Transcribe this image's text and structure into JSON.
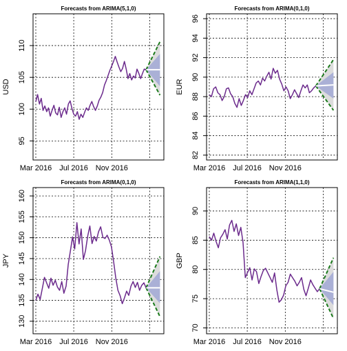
{
  "colors": {
    "series": "#6b2a8c",
    "forecast_mean": "#ffffff",
    "band80": "#aab0d6",
    "band95": "#dcdcdc",
    "forecast_bounds": "#1a7a1a",
    "grid": "#000000"
  },
  "chart_data": [
    {
      "type": "line",
      "title": "Forecasts from ARIMA(5,1,0)",
      "ylabel": "USD",
      "xtick_labels": [
        "Mar 2016",
        "Jul 2016",
        "Nov 2016"
      ],
      "xtick_pos": [
        0.0,
        0.333,
        0.667
      ],
      "x_range": [
        0.0,
        1.1
      ],
      "ylim": [
        92,
        115
      ],
      "yticks": [
        95,
        100,
        105,
        110
      ],
      "grid": true,
      "series": [
        {
          "values": [
            101.2,
            102.3,
            100.8,
            101.7,
            99.8,
            100.5,
            99.6,
            100.2,
            98.9,
            99.8,
            100.6,
            99.4,
            99.1,
            100.3,
            98.7,
            99.6,
            100.2,
            99.2,
            100.8,
            101.3,
            100.1,
            99.2,
            98.9,
            99.6,
            98.4,
            99.2,
            98.7,
            99.5,
            100.2,
            99.8,
            100.6,
            101.2,
            100.4,
            99.8,
            100.5,
            101.4,
            101.9,
            102.6,
            103.8,
            104.5,
            105.3,
            106.1,
            106.8,
            107.5,
            108.3,
            107.4,
            106.6,
            105.9,
            106.4,
            107.5,
            106.3,
            104.8,
            105.6,
            104.6,
            105.2,
            104.9,
            106.3,
            105.6,
            104.8,
            105.6,
            106.3,
            106.2
          ]
        }
      ],
      "forecast": {
        "x_start": 0.968,
        "x_end": 1.09,
        "mean_start": 106.2,
        "mean_end": 106.2,
        "lo80_end": 103.6,
        "hi80_end": 108.7,
        "lo95_end": 102.2,
        "hi95_end": 110.6
      }
    },
    {
      "type": "line",
      "title": "Forecasts from ARIMA(0,1,0)",
      "ylabel": "EUR",
      "xtick_labels": [
        "Mar 2016",
        "Jul 2016",
        "Nov 2016"
      ],
      "xtick_pos": [
        0.0,
        0.333,
        0.667
      ],
      "x_range": [
        0.0,
        1.1
      ],
      "ylim": [
        81.5,
        96.5
      ],
      "yticks": [
        82,
        84,
        86,
        88,
        90,
        92,
        94,
        96
      ],
      "grid": true,
      "series": [
        {
          "values": [
            88.2,
            88.0,
            88.8,
            89.0,
            88.4,
            88.2,
            87.6,
            88.0,
            88.8,
            88.9,
            88.3,
            88.0,
            87.3,
            86.9,
            87.8,
            87.1,
            87.6,
            88.2,
            87.9,
            88.6,
            88.2,
            88.8,
            89.4,
            89.6,
            89.2,
            89.9,
            89.6,
            90.1,
            90.5,
            89.8,
            90.9,
            90.4,
            90.7,
            89.8,
            89.3,
            88.6,
            89.0,
            88.6,
            87.8,
            88.2,
            88.7,
            88.3,
            87.9,
            88.6,
            89.2,
            88.9,
            89.2,
            88.4,
            88.6,
            88.9,
            89.1
          ],
          "x_end": 0.935
        }
      ],
      "forecast": {
        "x_start": 0.935,
        "x_end": 1.09,
        "mean_start": 89.1,
        "mean_end": 89.2,
        "lo80_end": 87.8,
        "hi80_end": 90.5,
        "lo95_end": 86.6,
        "hi95_end": 91.8
      }
    },
    {
      "type": "line",
      "title": "Forecasts from ARIMA(0,1,0)",
      "ylabel": "JPY",
      "xtick_labels": [
        "Mar 2016",
        "Jul 2016",
        "Nov 2016"
      ],
      "xtick_pos": [
        0.0,
        0.333,
        0.667
      ],
      "x_range": [
        0.0,
        1.1
      ],
      "ylim": [
        127,
        162
      ],
      "yticks": [
        130,
        135,
        140,
        145,
        150,
        155,
        160
      ],
      "grid": true,
      "series": [
        {
          "values": [
            135.0,
            136.5,
            135.2,
            137.8,
            140.5,
            139.2,
            137.9,
            140.3,
            138.6,
            139.8,
            138.2,
            137.4,
            139.5,
            136.7,
            138.4,
            143.6,
            146.8,
            150.2,
            147.3,
            153.6,
            148.5,
            152.1,
            144.8,
            146.9,
            150.4,
            152.8,
            148.6,
            150.3,
            149.2,
            151.4,
            152.6,
            150.1,
            149.8,
            150.6,
            149.4,
            147.8,
            144.2,
            140.3,
            137.4,
            136.1,
            134.2,
            135.6,
            137.2,
            136.2,
            138.4,
            139.5,
            138.1,
            139.3,
            137.4,
            138.6,
            139.2,
            138.0
          ]
        }
      ],
      "forecast": {
        "x_start": 0.968,
        "x_end": 1.09,
        "mean_start": 138.0,
        "mean_end": 138.0,
        "lo80_end": 134.3,
        "hi80_end": 142.0,
        "lo95_end": 131.1,
        "hi95_end": 145.5
      }
    },
    {
      "type": "line",
      "title": "Forecasts from ARIMA(1,1,0)",
      "ylabel": "GBP",
      "xtick_labels": [
        "Mar 2016",
        "Jul 2016",
        "Nov 2016"
      ],
      "xtick_pos": [
        0.0,
        0.333,
        0.667
      ],
      "x_range": [
        0.0,
        1.1
      ],
      "ylim": [
        69,
        94
      ],
      "yticks": [
        70,
        75,
        80,
        85,
        90
      ],
      "grid": true,
      "series": [
        {
          "values": [
            85.6,
            85.0,
            86.2,
            84.8,
            83.7,
            85.4,
            86.0,
            86.8,
            85.2,
            87.6,
            88.4,
            86.5,
            87.8,
            85.8,
            87.2,
            84.6,
            78.6,
            79.5,
            80.3,
            78.2,
            80.1,
            79.6,
            77.6,
            78.8,
            79.8,
            80.2,
            79.4,
            78.6,
            77.8,
            79.4,
            76.5,
            74.4,
            74.8,
            75.6,
            77.2,
            77.8,
            79.2,
            78.6,
            78.0,
            77.2,
            77.8,
            78.6,
            76.6,
            75.5,
            76.8,
            78.2,
            77.4,
            76.8,
            76.2,
            76.7
          ]
        }
      ],
      "forecast": {
        "x_start": 0.968,
        "x_end": 1.09,
        "mean_start": 76.7,
        "mean_end": 76.1,
        "lo80_end": 73.9,
        "hi80_end": 79.6,
        "lo95_end": 71.6,
        "hi95_end": 82.0
      }
    }
  ]
}
